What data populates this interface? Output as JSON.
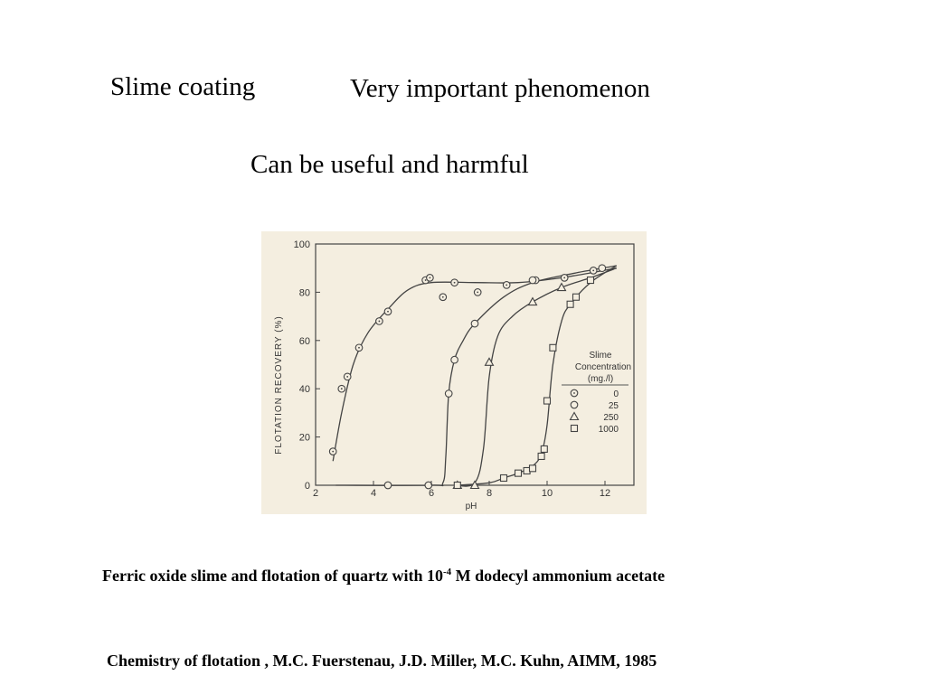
{
  "slide": {
    "topic": "Slime coating",
    "point1": "Very important phenomenon",
    "point2": "Can be useful and harmful",
    "caption_pre": "Ferric oxide slime  and flotation of quartz with 10",
    "caption_exp": "-4",
    "caption_post": " M dodecyl ammonium  acetate",
    "citation": "Chemistry of flotation , M.C. Fuerstenau, J.D. Miller, M.C. Kuhn, AIMM, 1985"
  },
  "chart_data": {
    "type": "line",
    "xlabel": "pH",
    "ylabel": "FLOTATION RECOVERY (%)",
    "xlim": [
      2,
      13
    ],
    "ylim": [
      0,
      100
    ],
    "xticks": [
      2,
      4,
      6,
      8,
      10,
      12
    ],
    "yticks": [
      0,
      20,
      40,
      60,
      80,
      100
    ],
    "legend_title": "Slime Concentration (mg./l)",
    "legend_position": "right",
    "series": [
      {
        "name": "0",
        "marker": "circle-dot",
        "points": [
          [
            2.6,
            14
          ],
          [
            2.9,
            40
          ],
          [
            3.1,
            45
          ],
          [
            3.5,
            57
          ],
          [
            4.2,
            68
          ],
          [
            4.5,
            72
          ],
          [
            5.8,
            85
          ],
          [
            5.95,
            86
          ],
          [
            6.4,
            78
          ],
          [
            6.8,
            84
          ],
          [
            7.6,
            80
          ],
          [
            8.6,
            83
          ],
          [
            9.6,
            85
          ],
          [
            10.6,
            86
          ],
          [
            11.6,
            89
          ]
        ],
        "curve": [
          [
            2.6,
            10
          ],
          [
            2.9,
            30
          ],
          [
            3.3,
            50
          ],
          [
            3.8,
            63
          ],
          [
            4.5,
            73
          ],
          [
            5.2,
            81
          ],
          [
            6.0,
            84
          ],
          [
            7.5,
            84
          ],
          [
            9.0,
            84
          ],
          [
            10.5,
            86
          ],
          [
            12.4,
            90
          ]
        ]
      },
      {
        "name": "25",
        "marker": "circle",
        "points": [
          [
            4.5,
            0
          ],
          [
            5.9,
            0
          ],
          [
            6.6,
            38
          ],
          [
            6.8,
            52
          ],
          [
            7.5,
            67
          ],
          [
            9.5,
            85
          ],
          [
            11.9,
            90
          ]
        ],
        "curve": [
          [
            2.7,
            0
          ],
          [
            6.0,
            0
          ],
          [
            6.4,
            1
          ],
          [
            6.5,
            12
          ],
          [
            6.6,
            38
          ],
          [
            6.8,
            52
          ],
          [
            7.1,
            60
          ],
          [
            7.5,
            67
          ],
          [
            8.5,
            78
          ],
          [
            9.5,
            84
          ],
          [
            11,
            88
          ],
          [
            12.4,
            91
          ]
        ]
      },
      {
        "name": "250",
        "marker": "triangle",
        "points": [
          [
            6.9,
            0
          ],
          [
            7.5,
            0
          ],
          [
            8.0,
            51
          ],
          [
            9.5,
            76
          ],
          [
            10.5,
            82
          ]
        ],
        "curve": [
          [
            6.8,
            0
          ],
          [
            7.5,
            1
          ],
          [
            7.8,
            15
          ],
          [
            8.0,
            45
          ],
          [
            8.3,
            62
          ],
          [
            8.8,
            70
          ],
          [
            9.5,
            76
          ],
          [
            10.5,
            82
          ],
          [
            11.5,
            86
          ],
          [
            12.4,
            90
          ]
        ]
      },
      {
        "name": "1000",
        "marker": "square",
        "points": [
          [
            6.9,
            0
          ],
          [
            8.5,
            3
          ],
          [
            9.0,
            5
          ],
          [
            9.3,
            6
          ],
          [
            9.5,
            7
          ],
          [
            9.8,
            12
          ],
          [
            9.9,
            15
          ],
          [
            10.0,
            35
          ],
          [
            10.2,
            57
          ],
          [
            10.8,
            75
          ],
          [
            11.0,
            78
          ],
          [
            11.5,
            85
          ]
        ],
        "curve": [
          [
            6.9,
            0
          ],
          [
            8.0,
            1
          ],
          [
            8.5,
            3
          ],
          [
            9.0,
            5
          ],
          [
            9.5,
            8
          ],
          [
            9.8,
            13
          ],
          [
            10.0,
            25
          ],
          [
            10.2,
            50
          ],
          [
            10.5,
            68
          ],
          [
            10.8,
            75
          ],
          [
            11.5,
            84
          ],
          [
            12.4,
            91
          ]
        ]
      }
    ]
  }
}
